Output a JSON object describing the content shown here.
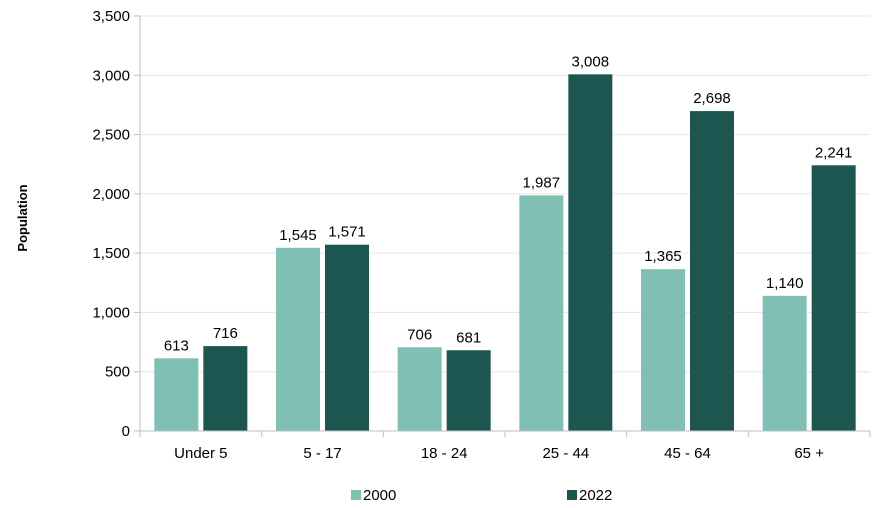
{
  "chart_data": {
    "type": "bar",
    "title": "",
    "xlabel": "",
    "ylabel": "Population",
    "ylim": [
      0,
      3500
    ],
    "yticks": [
      "0",
      "500",
      "1,000",
      "1,500",
      "2,000",
      "2,500",
      "3,000",
      "3,500"
    ],
    "ytick_values": [
      0,
      500,
      1000,
      1500,
      2000,
      2500,
      3000,
      3500
    ],
    "categories": [
      "Under 5",
      "5 - 17",
      "18 - 24",
      "25 - 44",
      "45 - 64",
      "65 +"
    ],
    "series": [
      {
        "name": "2000",
        "color": "#7fbfb4",
        "values": [
          613,
          1545,
          706,
          1987,
          1365,
          1140
        ],
        "labels": [
          "613",
          "1,545",
          "706",
          "1,987",
          "1,365",
          "1,140"
        ]
      },
      {
        "name": "2022",
        "color": "#1d5550",
        "values": [
          716,
          1571,
          681,
          3008,
          2698,
          2241
        ],
        "labels": [
          "716",
          "1,571",
          "681",
          "3,008",
          "2,698",
          "2,241"
        ]
      }
    ],
    "grid": true,
    "legend_position": "bottom"
  }
}
